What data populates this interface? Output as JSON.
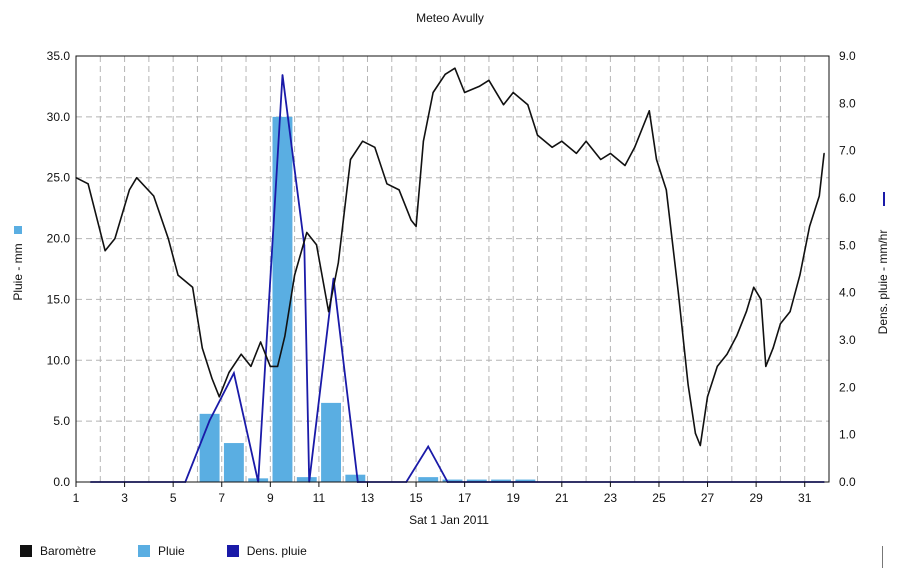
{
  "chart_data": {
    "type": "bar+line",
    "title": "Meteo  Avully",
    "xlabel": "Sat 1 Jan 2011",
    "ylabel_left": "Pluie - mm",
    "ylabel_right": "Dens. pluie - mm/hr",
    "x_ticks": [
      "1",
      "3",
      "5",
      "7",
      "9",
      "11",
      "13",
      "15",
      "17",
      "19",
      "21",
      "23",
      "25",
      "27",
      "29",
      "31"
    ],
    "xlim": [
      1,
      32
    ],
    "ylim_left": [
      0,
      35
    ],
    "ylim_right": [
      0,
      9
    ],
    "y_ticks_left": [
      "0.0",
      "5.0",
      "10.0",
      "15.0",
      "20.0",
      "25.0",
      "30.0",
      "35.0"
    ],
    "y_ticks_right": [
      "0.0",
      "1.0",
      "2.0",
      "3.0",
      "4.0",
      "5.0",
      "6.0",
      "7.0",
      "8.0",
      "9.0"
    ],
    "grid": true,
    "legend_position": "bottom",
    "legend": [
      {
        "name": "Baromètre",
        "color": "#111111"
      },
      {
        "name": "Pluie",
        "color": "#5aaee2"
      },
      {
        "name": "Dens. pluie",
        "color": "#1a1aa8"
      }
    ],
    "series": [
      {
        "name": "Pluie",
        "type": "bar",
        "axis": "left",
        "color": "#5aaee2",
        "x": [
          6.5,
          7.5,
          8.5,
          9.5,
          10.5,
          11.5,
          12.5,
          15.5,
          16.5,
          17.5,
          18.5,
          19.5
        ],
        "values": [
          5.6,
          3.2,
          0.3,
          30.0,
          0.4,
          6.5,
          0.6,
          0.4,
          0.2,
          0.2,
          0.2,
          0.2
        ]
      },
      {
        "name": "Dens. pluie",
        "type": "line",
        "axis": "right",
        "color": "#1a1aa8",
        "x": [
          1.6,
          5.5,
          6.5,
          7.5,
          8.5,
          9.5,
          10.4,
          10.6,
          11.6,
          12.6,
          13,
          14.6,
          15.5,
          16.3,
          17,
          31.8
        ],
        "values": [
          0,
          0,
          1.3,
          2.3,
          0,
          8.6,
          5.0,
          0,
          4.3,
          0,
          0,
          0,
          0.75,
          0,
          0,
          0
        ]
      },
      {
        "name": "Baromètre",
        "type": "line",
        "axis": "left",
        "color": "#111111",
        "x": [
          1,
          1.5,
          2.2,
          2.6,
          3.2,
          3.5,
          4.2,
          4.8,
          5.2,
          5.8,
          6.2,
          6.6,
          6.9,
          7.3,
          7.8,
          8.2,
          8.6,
          9.0,
          9.3,
          9.6,
          10.0,
          10.5,
          10.9,
          11.4,
          11.8,
          12.3,
          12.8,
          13.3,
          13.8,
          14.3,
          14.8,
          15.0,
          15.3,
          15.7,
          16.2,
          16.6,
          17.0,
          17.6,
          18.0,
          18.6,
          19.0,
          19.6,
          20.0,
          20.6,
          21.0,
          21.6,
          22.0,
          22.6,
          23.0,
          23.6,
          24.0,
          24.6,
          24.9,
          25.3,
          25.8,
          26.2,
          26.5,
          26.7,
          27.0,
          27.4,
          27.8,
          28.2,
          28.6,
          28.9,
          29.2,
          29.4,
          29.7,
          30.0,
          30.4,
          30.8,
          31.2,
          31.6,
          31.8
        ],
        "values": [
          25.0,
          24.5,
          19.0,
          20.0,
          24.0,
          25.0,
          23.5,
          20.0,
          17.0,
          16.0,
          11.0,
          8.5,
          7.0,
          9.0,
          10.5,
          9.5,
          11.5,
          9.5,
          9.5,
          12.0,
          17.0,
          20.5,
          19.5,
          14.0,
          18.0,
          26.5,
          28.0,
          27.5,
          24.5,
          24.0,
          21.5,
          21.0,
          28.0,
          32.0,
          33.5,
          34.0,
          32.0,
          32.5,
          33.0,
          31.0,
          32.0,
          31.0,
          28.5,
          27.5,
          28.0,
          27.0,
          28.0,
          26.5,
          27.0,
          26.0,
          27.5,
          30.5,
          26.5,
          24.0,
          15.5,
          8.0,
          4.0,
          3.0,
          7.0,
          9.5,
          10.5,
          12.0,
          14.0,
          16.0,
          15.0,
          9.5,
          11.0,
          13.0,
          14.0,
          17.0,
          21.0,
          23.5,
          27.0
        ]
      }
    ]
  }
}
